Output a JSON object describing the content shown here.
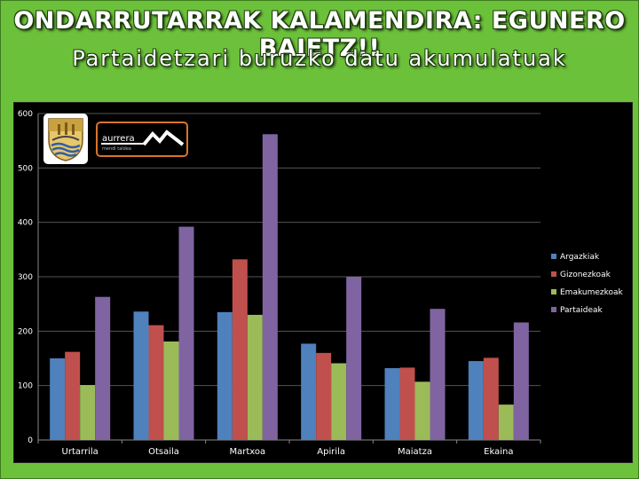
{
  "slide": {
    "title": "ONDARRUTARRAK KALAMENDIRA: EGUNERO BAIETZ!!",
    "subtitle": "Partaidetzari buruzko datu akumulatuak"
  },
  "logos": {
    "aurrera_text": "aurrera",
    "aurrera_small": "mendi taldea"
  },
  "chart_data": {
    "type": "bar",
    "categories": [
      "Urtarrila",
      "Otsaila",
      "Martxoa",
      "Apirila",
      "Maiatza",
      "Ekaina"
    ],
    "series": [
      {
        "name": "Argazkiak",
        "color": "#4f81bd",
        "values": [
          150,
          236,
          235,
          177,
          132,
          145
        ]
      },
      {
        "name": "Gizonezkoak",
        "color": "#c0504d",
        "values": [
          162,
          211,
          332,
          160,
          133,
          151
        ]
      },
      {
        "name": "Emakumezkoak",
        "color": "#9bbb59",
        "values": [
          101,
          181,
          230,
          141,
          107,
          65
        ]
      },
      {
        "name": "Partaideak",
        "color": "#8064a2",
        "values": [
          263,
          392,
          562,
          300,
          241,
          216
        ]
      }
    ],
    "ylim": [
      0,
      600
    ],
    "yticks": [
      0,
      100,
      200,
      300,
      400,
      500,
      600
    ],
    "grid": true,
    "legend_position": "right",
    "background": "#000000"
  }
}
